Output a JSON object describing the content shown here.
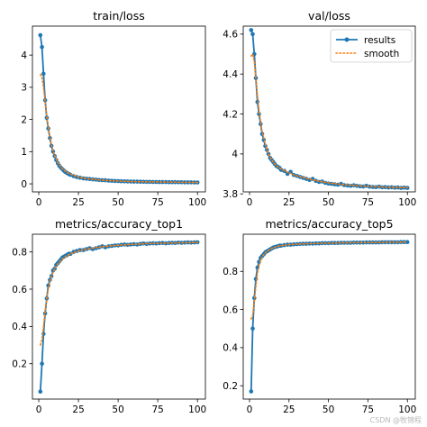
{
  "figure": {
    "watermark": "CSDN @牧锦程",
    "colors": {
      "results": "#1f77b4",
      "smooth": "#ff7f0e",
      "axis": "#000000"
    }
  },
  "chart_data": [
    {
      "type": "line",
      "title": "train/loss",
      "xlim": [
        -4,
        105
      ],
      "ylim": [
        -0.25,
        4.9
      ],
      "xticks": [
        0,
        25,
        50,
        75,
        100
      ],
      "yticks": [
        0,
        1,
        2,
        3,
        4
      ],
      "legend": null,
      "series": [
        {
          "name": "results",
          "style": "line-marker",
          "x": [
            1,
            2,
            3,
            4,
            5,
            6,
            7,
            8,
            9,
            10,
            11,
            12,
            13,
            14,
            15,
            16,
            17,
            18,
            19,
            20,
            22,
            24,
            26,
            28,
            30,
            32,
            34,
            36,
            38,
            40,
            42,
            44,
            46,
            48,
            50,
            52,
            54,
            56,
            58,
            60,
            62,
            64,
            66,
            68,
            70,
            72,
            74,
            76,
            78,
            80,
            82,
            84,
            86,
            88,
            90,
            92,
            94,
            96,
            98,
            100
          ],
          "y": [
            4.62,
            4.25,
            3.42,
            2.6,
            2.05,
            1.72,
            1.42,
            1.18,
            1.0,
            0.86,
            0.74,
            0.64,
            0.56,
            0.5,
            0.45,
            0.4,
            0.36,
            0.33,
            0.3,
            0.28,
            0.24,
            0.21,
            0.19,
            0.17,
            0.16,
            0.15,
            0.14,
            0.13,
            0.12,
            0.115,
            0.11,
            0.1,
            0.095,
            0.09,
            0.085,
            0.08,
            0.078,
            0.075,
            0.072,
            0.07,
            0.068,
            0.066,
            0.064,
            0.062,
            0.06,
            0.058,
            0.057,
            0.056,
            0.055,
            0.054,
            0.053,
            0.052,
            0.051,
            0.05,
            0.049,
            0.048,
            0.047,
            0.046,
            0.045,
            0.045
          ]
        },
        {
          "name": "smooth",
          "style": "dotted",
          "x": [
            1,
            2,
            3,
            4,
            5,
            6,
            7,
            8,
            9,
            10,
            12,
            14,
            16,
            18,
            20,
            25,
            30,
            40,
            50,
            60,
            70,
            80,
            90,
            100
          ],
          "y": [
            3.4,
            3.3,
            3.0,
            2.55,
            2.1,
            1.75,
            1.45,
            1.22,
            1.03,
            0.88,
            0.66,
            0.52,
            0.42,
            0.35,
            0.3,
            0.21,
            0.16,
            0.11,
            0.085,
            0.07,
            0.06,
            0.054,
            0.049,
            0.045
          ]
        }
      ]
    },
    {
      "type": "line",
      "title": "val/loss",
      "xlim": [
        -4,
        105
      ],
      "ylim": [
        3.81,
        4.64
      ],
      "xticks": [
        0,
        25,
        50,
        75,
        100
      ],
      "yticks": [
        3.8,
        4.0,
        4.2,
        4.4,
        4.6
      ],
      "legend": {
        "placement": "top-right",
        "entries": [
          "results",
          "smooth"
        ]
      },
      "series": [
        {
          "name": "results",
          "style": "line-marker",
          "x": [
            1,
            2,
            3,
            4,
            5,
            6,
            7,
            8,
            9,
            10,
            11,
            12,
            13,
            14,
            15,
            16,
            17,
            18,
            19,
            20,
            22,
            24,
            26,
            28,
            30,
            32,
            34,
            36,
            38,
            40,
            42,
            44,
            46,
            48,
            50,
            52,
            54,
            56,
            58,
            60,
            62,
            64,
            66,
            68,
            70,
            72,
            74,
            76,
            78,
            80,
            82,
            84,
            86,
            88,
            90,
            92,
            94,
            96,
            98,
            100
          ],
          "y": [
            4.62,
            4.6,
            4.5,
            4.38,
            4.26,
            4.2,
            4.15,
            4.1,
            4.07,
            4.04,
            4.02,
            4.0,
            3.98,
            3.97,
            3.96,
            3.95,
            3.94,
            3.935,
            3.93,
            3.92,
            3.915,
            3.9,
            3.91,
            3.895,
            3.89,
            3.885,
            3.88,
            3.875,
            3.87,
            3.875,
            3.865,
            3.86,
            3.862,
            3.855,
            3.852,
            3.85,
            3.848,
            3.846,
            3.85,
            3.844,
            3.842,
            3.84,
            3.843,
            3.84,
            3.838,
            3.837,
            3.84,
            3.836,
            3.835,
            3.834,
            3.836,
            3.833,
            3.834,
            3.832,
            3.833,
            3.831,
            3.832,
            3.83,
            3.831,
            3.83
          ]
        },
        {
          "name": "smooth",
          "style": "dotted",
          "x": [
            1,
            2,
            3,
            4,
            5,
            6,
            7,
            8,
            9,
            10,
            12,
            14,
            16,
            18,
            20,
            25,
            30,
            40,
            50,
            60,
            70,
            80,
            90,
            100
          ],
          "y": [
            4.49,
            4.5,
            4.46,
            4.38,
            4.29,
            4.22,
            4.16,
            4.11,
            4.08,
            4.05,
            4.0,
            3.97,
            3.95,
            3.935,
            3.925,
            3.905,
            3.89,
            3.87,
            3.855,
            3.846,
            3.84,
            3.836,
            3.833,
            3.831
          ]
        }
      ]
    },
    {
      "type": "line",
      "title": "metrics/accuracy_top1",
      "xlim": [
        -4,
        105
      ],
      "ylim": [
        0.01,
        0.895
      ],
      "xticks": [
        0,
        25,
        50,
        75,
        100
      ],
      "yticks": [
        0.2,
        0.4,
        0.6,
        0.8
      ],
      "legend": null,
      "series": [
        {
          "name": "results",
          "style": "line-marker",
          "x": [
            1,
            2,
            3,
            4,
            5,
            6,
            7,
            8,
            9,
            10,
            11,
            12,
            13,
            14,
            15,
            16,
            17,
            18,
            19,
            20,
            22,
            24,
            26,
            28,
            30,
            32,
            34,
            36,
            38,
            40,
            42,
            44,
            46,
            48,
            50,
            52,
            54,
            56,
            58,
            60,
            62,
            64,
            66,
            68,
            70,
            72,
            74,
            76,
            78,
            80,
            82,
            84,
            86,
            88,
            90,
            92,
            94,
            96,
            98,
            100
          ],
          "y": [
            0.05,
            0.2,
            0.36,
            0.47,
            0.55,
            0.62,
            0.65,
            0.67,
            0.7,
            0.71,
            0.73,
            0.74,
            0.75,
            0.76,
            0.77,
            0.775,
            0.78,
            0.785,
            0.79,
            0.79,
            0.8,
            0.805,
            0.81,
            0.81,
            0.815,
            0.82,
            0.815,
            0.82,
            0.825,
            0.83,
            0.825,
            0.83,
            0.832,
            0.835,
            0.835,
            0.838,
            0.84,
            0.838,
            0.84,
            0.842,
            0.84,
            0.843,
            0.845,
            0.843,
            0.845,
            0.846,
            0.845,
            0.847,
            0.848,
            0.846,
            0.848,
            0.849,
            0.848,
            0.85,
            0.849,
            0.85,
            0.851,
            0.85,
            0.851,
            0.852
          ]
        },
        {
          "name": "smooth",
          "style": "dotted",
          "x": [
            1,
            2,
            3,
            4,
            5,
            6,
            7,
            8,
            9,
            10,
            12,
            14,
            16,
            18,
            20,
            25,
            30,
            40,
            50,
            60,
            70,
            80,
            90,
            100
          ],
          "y": [
            0.3,
            0.33,
            0.4,
            0.48,
            0.55,
            0.6,
            0.64,
            0.67,
            0.69,
            0.71,
            0.735,
            0.755,
            0.77,
            0.782,
            0.79,
            0.805,
            0.815,
            0.828,
            0.836,
            0.841,
            0.845,
            0.847,
            0.849,
            0.851
          ]
        }
      ]
    },
    {
      "type": "line",
      "title": "metrics/accuracy_top5",
      "xlim": [
        -4,
        105
      ],
      "ylim": [
        0.13,
        0.995
      ],
      "xticks": [
        0,
        25,
        50,
        75,
        100
      ],
      "yticks": [
        0.2,
        0.4,
        0.6,
        0.8
      ],
      "legend": null,
      "series": [
        {
          "name": "results",
          "style": "line-marker",
          "x": [
            1,
            2,
            3,
            4,
            5,
            6,
            7,
            8,
            9,
            10,
            11,
            12,
            13,
            14,
            15,
            16,
            17,
            18,
            19,
            20,
            22,
            24,
            26,
            28,
            30,
            32,
            34,
            36,
            38,
            40,
            42,
            44,
            46,
            48,
            50,
            52,
            54,
            56,
            58,
            60,
            62,
            64,
            66,
            68,
            70,
            72,
            74,
            76,
            78,
            80,
            82,
            84,
            86,
            88,
            90,
            92,
            94,
            96,
            98,
            100
          ],
          "y": [
            0.17,
            0.5,
            0.66,
            0.76,
            0.82,
            0.85,
            0.87,
            0.88,
            0.89,
            0.9,
            0.905,
            0.91,
            0.915,
            0.92,
            0.925,
            0.928,
            0.93,
            0.932,
            0.935,
            0.935,
            0.938,
            0.94,
            0.94,
            0.942,
            0.943,
            0.944,
            0.945,
            0.945,
            0.946,
            0.946,
            0.947,
            0.947,
            0.948,
            0.948,
            0.948,
            0.949,
            0.949,
            0.949,
            0.95,
            0.95,
            0.95,
            0.95,
            0.951,
            0.951,
            0.951,
            0.951,
            0.952,
            0.952,
            0.952,
            0.952,
            0.952,
            0.953,
            0.953,
            0.953,
            0.953,
            0.953,
            0.953,
            0.954,
            0.954,
            0.954
          ]
        },
        {
          "name": "smooth",
          "style": "dotted",
          "x": [
            1,
            2,
            3,
            4,
            5,
            6,
            7,
            8,
            9,
            10,
            12,
            14,
            16,
            18,
            20,
            25,
            30,
            40,
            50,
            60,
            70,
            80,
            90,
            100
          ],
          "y": [
            0.55,
            0.57,
            0.64,
            0.72,
            0.79,
            0.83,
            0.86,
            0.875,
            0.888,
            0.897,
            0.91,
            0.92,
            0.927,
            0.932,
            0.935,
            0.94,
            0.943,
            0.946,
            0.948,
            0.95,
            0.951,
            0.952,
            0.953,
            0.954
          ]
        }
      ]
    }
  ]
}
